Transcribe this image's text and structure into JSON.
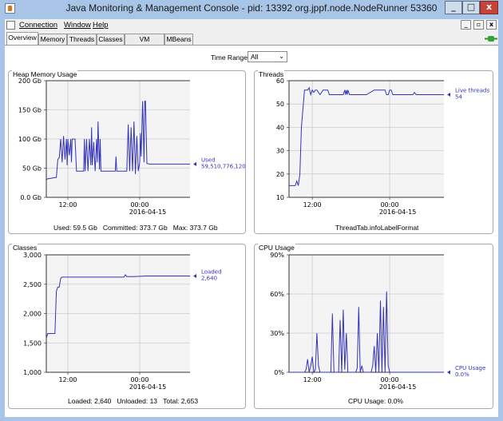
{
  "window": {
    "title": "Java Monitoring & Management Console - pid: 13392 org.jppf.node.NodeRunner 53360",
    "min_glyph": "_",
    "max_glyph": "□",
    "close_glyph": "x"
  },
  "menu": {
    "connection": "Connection",
    "window": "Window",
    "help": "Help",
    "child_min_glyph": "_",
    "child_restore_glyph": "▫",
    "child_close_glyph": "x"
  },
  "tabs": [
    {
      "label": "Overview"
    },
    {
      "label": "Memory"
    },
    {
      "label": "Threads"
    },
    {
      "label": "Classes"
    },
    {
      "label": "VM Summary"
    },
    {
      "label": "MBeans"
    }
  ],
  "time_range": {
    "label": "Time Range:",
    "value": "All"
  },
  "colors": {
    "series": "#3333bb",
    "grid": "#cccccc",
    "plot_bg": "#f4f4f4"
  },
  "panels": {
    "heap": {
      "title": "Heap Memory Usage",
      "footer_used": "Used: 59.5 Gb",
      "footer_committed": "Committed: 373.7 Gb",
      "footer_max": "Max: 373.7 Gb"
    },
    "threads": {
      "title": "Threads",
      "footer": "ThreadTab.infoLabelFormat"
    },
    "classes": {
      "title": "Classes",
      "footer_loaded": "Loaded: 2,640",
      "footer_unloaded": "Unloaded: 13",
      "footer_total": "Total: 2,653"
    },
    "cpu": {
      "title": "CPU Usage",
      "footer": "CPU Usage: 0.0%"
    }
  },
  "chart_data": [
    {
      "id": "heap",
      "type": "line",
      "ylim": [
        0,
        200
      ],
      "yticks": [
        0,
        50,
        100,
        150,
        200
      ],
      "yticklabels": [
        "0.0 Gb",
        "50 Gb",
        "100 Gb",
        "150 Gb",
        "200 Gb"
      ],
      "xlim": [
        0,
        100
      ],
      "xticks": [
        15,
        65
      ],
      "xticklabels": [
        [
          "12:00",
          ""
        ],
        [
          "00:00",
          "2016-04-15"
        ]
      ],
      "series": [
        {
          "name": "Used",
          "value_label": "59,510,776,120",
          "x": [
            0,
            1,
            2,
            6,
            7,
            8,
            9,
            10,
            11,
            12,
            13,
            14,
            14.5,
            15,
            16,
            17,
            17.5,
            18,
            19,
            20,
            21,
            22,
            23,
            24,
            26,
            26.5,
            27,
            28,
            29,
            30,
            31,
            31.5,
            32,
            33,
            34,
            35,
            35.5,
            36,
            37,
            37.5,
            38,
            40,
            43,
            45,
            47,
            48,
            48.5,
            49,
            50,
            51,
            52,
            53,
            54,
            55,
            56,
            57,
            58,
            59,
            60,
            61,
            62,
            63,
            64,
            65,
            65.5,
            66,
            67,
            68,
            68.5,
            69,
            70,
            72,
            100
          ],
          "y": [
            30,
            32,
            32,
            34,
            34,
            65,
            68,
            100,
            60,
            105,
            65,
            100,
            55,
            100,
            72,
            100,
            60,
            100,
            100,
            100,
            45,
            45,
            45,
            45,
            45,
            100,
            45,
            100,
            45,
            100,
            55,
            120,
            55,
            95,
            45,
            100,
            60,
            130,
            48,
            100,
            45,
            45,
            45,
            45,
            45,
            45,
            70,
            45,
            45,
            45,
            45,
            45,
            45,
            45,
            45,
            125,
            45,
            120,
            45,
            130,
            40,
            105,
            45,
            60,
            110,
            70,
            165,
            60,
            165,
            165,
            58,
            57,
            57
          ]
        }
      ]
    },
    {
      "id": "threads",
      "type": "line",
      "ylim": [
        10,
        60
      ],
      "yticks": [
        10,
        20,
        30,
        40,
        50,
        60
      ],
      "yticklabels": [
        "10",
        "20",
        "30",
        "40",
        "50",
        "60"
      ],
      "xlim": [
        0,
        100
      ],
      "xticks": [
        15,
        65
      ],
      "xticklabels": [
        [
          "12:00",
          ""
        ],
        [
          "00:00",
          "2016-04-15"
        ]
      ],
      "series": [
        {
          "name": "Live threads",
          "value_label": "54",
          "x": [
            0,
            4,
            5,
            6,
            7,
            8,
            10,
            12,
            13,
            14,
            15,
            16,
            17,
            18,
            20,
            22,
            25,
            26,
            30,
            35,
            36,
            36.5,
            37,
            37.5,
            38,
            39,
            40,
            45,
            50,
            55,
            60,
            62,
            63,
            64,
            65,
            66,
            67,
            70,
            75,
            80,
            81,
            82,
            90,
            100
          ],
          "y": [
            15,
            15,
            17,
            15,
            20,
            40,
            56,
            56,
            57,
            54,
            56,
            55,
            56,
            56,
            54,
            56,
            56,
            54,
            54,
            54,
            56,
            54,
            56,
            54,
            56,
            54,
            54,
            54,
            54,
            56,
            56,
            56,
            54,
            54,
            56,
            56,
            54,
            54,
            54,
            54,
            55,
            54,
            54,
            54
          ]
        }
      ]
    },
    {
      "id": "classes",
      "type": "line",
      "ylim": [
        1000,
        3000
      ],
      "yticks": [
        1000,
        1500,
        2000,
        2500,
        3000
      ],
      "yticklabels": [
        "1,000",
        "1,500",
        "2,000",
        "2,500",
        "3,000"
      ],
      "xlim": [
        0,
        100
      ],
      "xticks": [
        15,
        65
      ],
      "xticklabels": [
        [
          "12:00",
          ""
        ],
        [
          "00:00",
          "2016-04-15"
        ]
      ],
      "series": [
        {
          "name": "Loaded",
          "value_label": "2,640",
          "x": [
            0,
            1,
            2,
            6,
            7,
            8,
            9,
            10,
            11,
            12,
            20,
            30,
            40,
            50,
            54,
            55,
            56,
            60,
            70,
            80,
            90,
            100
          ],
          "y": [
            1580,
            1660,
            1660,
            1660,
            2380,
            2450,
            2450,
            2600,
            2620,
            2620,
            2620,
            2620,
            2620,
            2620,
            2620,
            2660,
            2630,
            2630,
            2640,
            2640,
            2640,
            2640
          ]
        }
      ]
    },
    {
      "id": "cpu",
      "type": "line",
      "ylim": [
        0,
        90
      ],
      "yticks": [
        0,
        30,
        60,
        90
      ],
      "yticklabels": [
        "0%",
        "30%",
        "60%",
        "90%"
      ],
      "xlim": [
        0,
        100
      ],
      "xticks": [
        15,
        65
      ],
      "xticklabels": [
        [
          "12:00",
          ""
        ],
        [
          "00:00",
          "2016-04-15"
        ]
      ],
      "series": [
        {
          "name": "CPU Usage",
          "value_label": "0.0%",
          "x": [
            0,
            10,
            11,
            12,
            13,
            14,
            15,
            16,
            17,
            18,
            19,
            20,
            25,
            27,
            28,
            29,
            30,
            32,
            33,
            34,
            35,
            36,
            37,
            38,
            39,
            41,
            43,
            44,
            45,
            46,
            47,
            48,
            50,
            53,
            54,
            55,
            56,
            57,
            58,
            59,
            60,
            61,
            62,
            63,
            64,
            65,
            66,
            68,
            70,
            100
          ],
          "y": [
            0,
            0,
            2,
            10,
            0,
            5,
            12,
            0,
            2,
            30,
            5,
            0,
            0,
            0,
            45,
            0,
            0,
            0,
            40,
            0,
            48,
            2,
            30,
            0,
            0,
            0,
            0,
            3,
            50,
            0,
            5,
            0,
            0,
            0,
            5,
            20,
            0,
            30,
            0,
            55,
            0,
            50,
            0,
            62,
            5,
            0,
            0,
            0,
            0,
            0
          ]
        }
      ]
    }
  ]
}
